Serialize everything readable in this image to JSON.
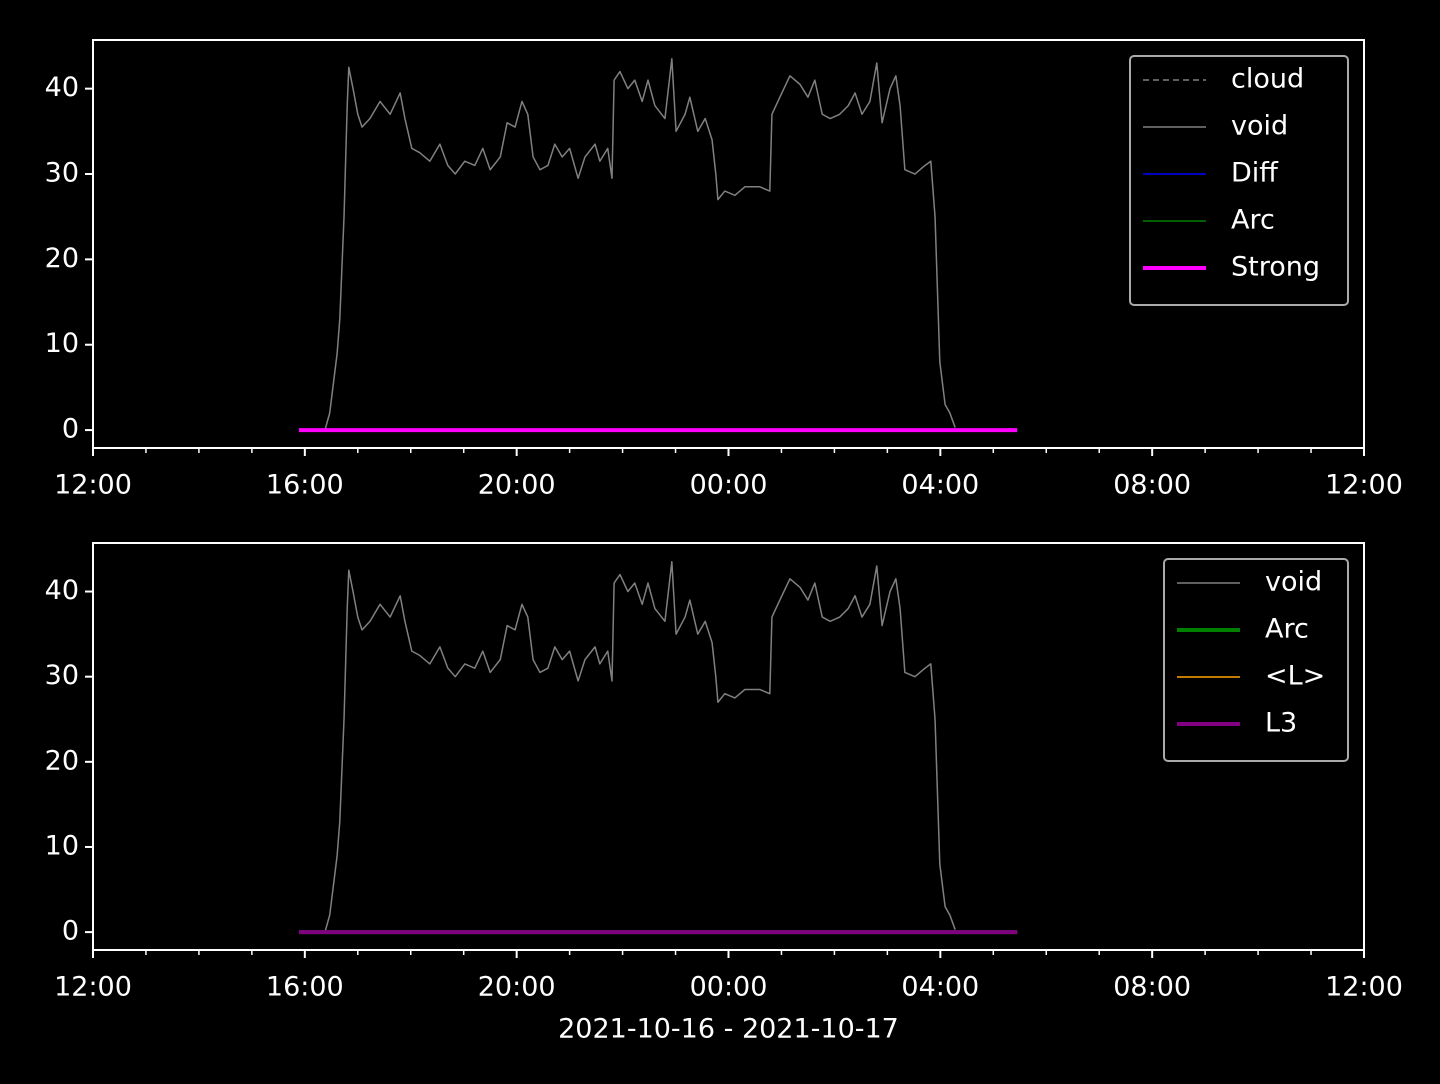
{
  "chart_data": [
    {
      "type": "line",
      "series": [
        {
          "name": "cloud",
          "color": "#808080",
          "dash": true,
          "linewidth": 1.5
        },
        {
          "name": "void",
          "color": "#808080",
          "linewidth": 1.5,
          "x": [
            3.89,
            4.38,
            4.47,
            4.61,
            4.66,
            4.74,
            4.8,
            4.83,
            4.91,
            5.0,
            5.08,
            5.23,
            5.42,
            5.61,
            5.8,
            5.89,
            6.02,
            6.17,
            6.36,
            6.55,
            6.7,
            6.84,
            7.02,
            7.21,
            7.36,
            7.5,
            7.69,
            7.82,
            7.97,
            8.1,
            8.21,
            8.31,
            8.44,
            8.59,
            8.72,
            8.86,
            9.0,
            9.16,
            9.29,
            9.48,
            9.57,
            9.72,
            9.8,
            9.84,
            9.95,
            10.1,
            10.23,
            10.37,
            10.48,
            10.61,
            10.8,
            10.93,
            11.01,
            11.18,
            11.27,
            11.42,
            11.56,
            11.69,
            11.76,
            11.8,
            11.93,
            12.12,
            12.31,
            12.59,
            12.78,
            12.82,
            12.97,
            13.16,
            13.35,
            13.5,
            13.63,
            13.77,
            13.92,
            14.1,
            14.26,
            14.39,
            14.52,
            14.67,
            14.8,
            14.9,
            15.05,
            15.16,
            15.24,
            15.33,
            15.52,
            15.71,
            15.82,
            15.9,
            15.99,
            16.09,
            16.18,
            16.28
          ],
          "values": [
            0,
            0,
            2,
            9,
            13,
            25,
            38,
            42.5,
            40,
            37,
            35.5,
            36.5,
            38.5,
            37,
            39.5,
            36.5,
            33,
            32.5,
            31.5,
            33.5,
            31,
            30,
            31.5,
            31,
            33,
            30.5,
            32,
            36,
            35.5,
            38.5,
            37,
            32,
            30.5,
            31,
            33.5,
            32,
            33,
            29.5,
            32,
            33.5,
            31.5,
            33,
            29.5,
            41,
            42,
            40,
            41,
            38.5,
            41,
            38,
            36.5,
            43.5,
            35,
            37,
            39,
            35,
            36.5,
            34,
            30,
            27,
            28,
            27.5,
            28.5,
            28.5,
            28,
            37,
            39,
            41.5,
            40.5,
            39,
            41,
            37,
            36.5,
            37,
            38,
            39.5,
            37,
            38.5,
            43,
            36,
            40,
            41.5,
            38,
            30.5,
            30,
            31,
            31.5,
            25,
            8,
            3,
            2,
            0.3
          ]
        },
        {
          "name": "Diff",
          "color": "#0000ff",
          "linewidth": 1.5,
          "x": [
            3.89,
            17.45
          ],
          "values": [
            0,
            0
          ]
        },
        {
          "name": "Arc",
          "color": "#008000",
          "linewidth": 1.5,
          "x": [
            3.89,
            17.45
          ],
          "values": [
            0,
            0
          ]
        },
        {
          "name": "Strong",
          "color": "#ff00ff",
          "linewidth": 4,
          "x": [
            3.89,
            17.45
          ],
          "values": [
            0,
            0
          ]
        }
      ],
      "xlim": [
        0,
        24
      ],
      "xticks": [
        {
          "value": 0,
          "label": "12:00"
        },
        {
          "value": 4,
          "label": "16:00"
        },
        {
          "value": 8,
          "label": "20:00"
        },
        {
          "value": 12,
          "label": "00:00"
        },
        {
          "value": 16,
          "label": "04:00"
        },
        {
          "value": 20,
          "label": "08:00"
        },
        {
          "value": 24,
          "label": "12:00"
        }
      ],
      "ylim": [
        -2.1,
        45.7
      ],
      "yticks": [
        0,
        10,
        20,
        30,
        40
      ],
      "legend": "upper right"
    },
    {
      "type": "line",
      "series": [
        {
          "name": "void",
          "color": "#808080",
          "linewidth": 1.5,
          "x": [
            3.89,
            4.38,
            4.47,
            4.61,
            4.66,
            4.74,
            4.8,
            4.83,
            4.91,
            5.0,
            5.08,
            5.23,
            5.42,
            5.61,
            5.8,
            5.89,
            6.02,
            6.17,
            6.36,
            6.55,
            6.7,
            6.84,
            7.02,
            7.21,
            7.36,
            7.5,
            7.69,
            7.82,
            7.97,
            8.1,
            8.21,
            8.31,
            8.44,
            8.59,
            8.72,
            8.86,
            9.0,
            9.16,
            9.29,
            9.48,
            9.57,
            9.72,
            9.8,
            9.84,
            9.95,
            10.1,
            10.23,
            10.37,
            10.48,
            10.61,
            10.8,
            10.93,
            11.01,
            11.18,
            11.27,
            11.42,
            11.56,
            11.69,
            11.76,
            11.8,
            11.93,
            12.12,
            12.31,
            12.59,
            12.78,
            12.82,
            12.97,
            13.16,
            13.35,
            13.5,
            13.63,
            13.77,
            13.92,
            14.1,
            14.26,
            14.39,
            14.52,
            14.67,
            14.8,
            14.9,
            15.05,
            15.16,
            15.24,
            15.33,
            15.52,
            15.71,
            15.82,
            15.9,
            15.99,
            16.09,
            16.18,
            16.28
          ],
          "values": [
            0,
            0,
            2,
            9,
            13,
            25,
            38,
            42.5,
            40,
            37,
            35.5,
            36.5,
            38.5,
            37,
            39.5,
            36.5,
            33,
            32.5,
            31.5,
            33.5,
            31,
            30,
            31.5,
            31,
            33,
            30.5,
            32,
            36,
            35.5,
            38.5,
            37,
            32,
            30.5,
            31,
            33.5,
            32,
            33,
            29.5,
            32,
            33.5,
            31.5,
            33,
            29.5,
            41,
            42,
            40,
            41,
            38.5,
            41,
            38,
            36.5,
            43.5,
            35,
            37,
            39,
            35,
            36.5,
            34,
            30,
            27,
            28,
            27.5,
            28.5,
            28.5,
            28,
            37,
            39,
            41.5,
            40.5,
            39,
            41,
            37,
            36.5,
            37,
            38,
            39.5,
            37,
            38.5,
            43,
            36,
            40,
            41.5,
            38,
            30.5,
            30,
            31,
            31.5,
            25,
            8,
            3,
            2,
            0.3
          ]
        },
        {
          "name": "Arc",
          "color": "#008000",
          "linewidth": 4,
          "x": [
            3.89,
            17.45
          ],
          "values": [
            0,
            0
          ]
        },
        {
          "name": "<L>",
          "color": "#ffa500",
          "linewidth": 1.5,
          "x": [
            3.89,
            17.45
          ],
          "values": [
            0,
            0
          ]
        },
        {
          "name": "L3",
          "color": "#800080",
          "linewidth": 4,
          "x": [
            3.89,
            17.45
          ],
          "values": [
            0,
            0
          ]
        }
      ],
      "xlim": [
        0,
        24
      ],
      "xticks": [
        {
          "value": 0,
          "label": "12:00"
        },
        {
          "value": 4,
          "label": "16:00"
        },
        {
          "value": 8,
          "label": "20:00"
        },
        {
          "value": 12,
          "label": "00:00"
        },
        {
          "value": 16,
          "label": "04:00"
        },
        {
          "value": 20,
          "label": "08:00"
        },
        {
          "value": 24,
          "label": "12:00"
        }
      ],
      "ylim": [
        -2.1,
        45.7
      ],
      "yticks": [
        0,
        10,
        20,
        30,
        40
      ],
      "legend": "upper right",
      "xlabel": "2021-10-16 - 2021-10-17"
    }
  ]
}
